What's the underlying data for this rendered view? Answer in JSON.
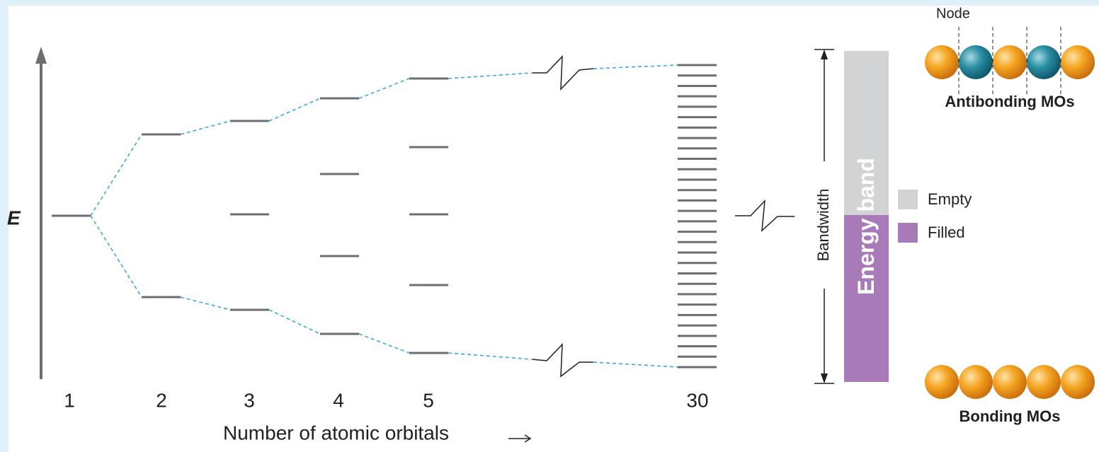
{
  "energy_axis": {
    "label": "E"
  },
  "columns": [
    "1",
    "2",
    "3",
    "4",
    "5",
    "30"
  ],
  "x_axis_label": "Number of atomic orbitals",
  "bandwidth_label": "Bandwidth",
  "band_label": {
    "first": "Energy",
    "second": "band"
  },
  "legend": [
    {
      "label": "Empty"
    },
    {
      "label": "Filled"
    }
  ],
  "antibonding": {
    "node_label": "Node",
    "label": "Antibonding MOs"
  },
  "bonding": {
    "label": "Bonding MOs"
  }
}
